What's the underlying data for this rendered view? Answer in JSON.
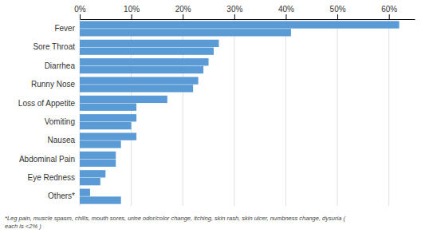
{
  "chart_data": {
    "type": "bar",
    "orientation": "horizontal",
    "categories": [
      "Fever",
      "Sore Throat",
      "Diarrhea",
      "Runny Nose",
      "Loss of Appetite",
      "Vomiting",
      "Nausea",
      "Abdominal Pain",
      "Eye Redness",
      "Others*"
    ],
    "series": [
      {
        "color": "#5B9BD5",
        "values": [
          62,
          27,
          25,
          23,
          17,
          11,
          11,
          7,
          5,
          2
        ]
      },
      {
        "color": "#5B9BD5",
        "values": [
          41,
          26,
          24,
          22,
          11,
          10,
          8,
          7,
          4,
          8
        ]
      }
    ],
    "xlim": [
      0,
      65
    ],
    "xticks": [
      {
        "value": 0,
        "label": "0%"
      },
      {
        "value": 10,
        "label": "10%"
      },
      {
        "value": 20,
        "label": "20%"
      },
      {
        "value": 30,
        "label": "30%"
      },
      {
        "value": 40,
        "label": "40%"
      },
      {
        "value": 50,
        "label": "50%"
      },
      {
        "value": 60,
        "label": "60%"
      }
    ],
    "grid": true,
    "annotations": [
      "*Leg pain, muscle spasm, chills, mouth sores, urine odor/color change, itching, skin rash, skin ulcer, numbness change, dysuria (",
      "each is <2% )"
    ]
  }
}
